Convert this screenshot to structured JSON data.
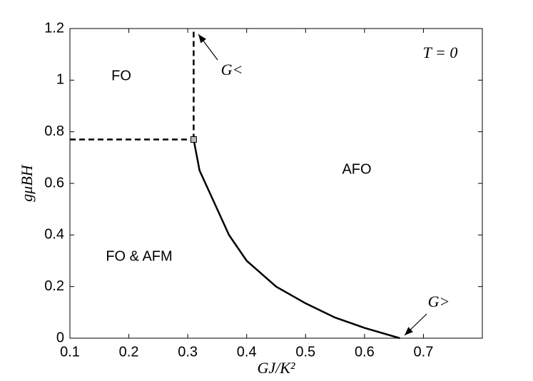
{
  "chart_data": {
    "type": "line",
    "xlabel": "GJ/K²",
    "ylabel": "gμBH",
    "xlim": [
      0.1,
      0.8
    ],
    "ylim": [
      0,
      1.2
    ],
    "xticks": [
      0.1,
      0.2,
      0.3,
      0.4,
      0.5,
      0.6,
      0.7
    ],
    "yticks": [
      0,
      0.2,
      0.4,
      0.6,
      0.8,
      1,
      1.2
    ],
    "grid": false,
    "series": [
      {
        "color": "#000000",
        "dashed": false,
        "x": [
          0.31,
          0.32,
          0.33,
          0.35,
          0.37,
          0.4,
          0.45,
          0.5,
          0.55,
          0.6,
          0.66
        ],
        "values": [
          0.77,
          0.65,
          0.6,
          0.5,
          0.4,
          0.3,
          0.2,
          0.135,
          0.08,
          0.04,
          0
        ]
      },
      {
        "color": "#000000",
        "dashed": true,
        "x": [
          0.1,
          0.31
        ],
        "values": [
          0.77,
          0.77
        ]
      },
      {
        "color": "#000000",
        "dashed": true,
        "x": [
          0.31,
          0.31
        ],
        "values": [
          0.77,
          1.2
        ]
      },
      {
        "color": "#000000",
        "marker": "square",
        "marker_fill": "#bbbbbb",
        "x": [
          0.31
        ],
        "values": [
          0.77
        ]
      }
    ],
    "annotations": [
      "FO",
      "AFO",
      "FO & AFM",
      "T = 0",
      "G<",
      "G>"
    ]
  }
}
